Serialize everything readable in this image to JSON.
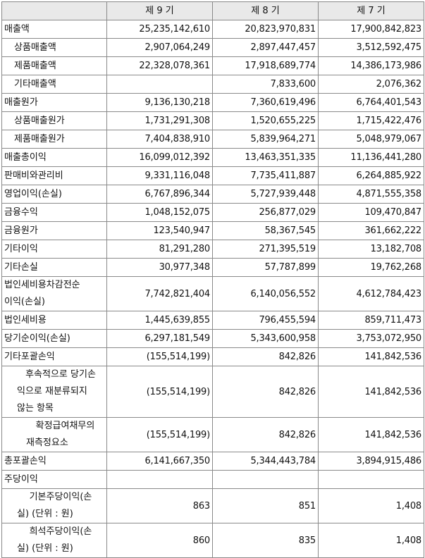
{
  "header": {
    "label_col": "",
    "col1": "제 9 기",
    "col2": "제 8 기",
    "col3": "제 7 기"
  },
  "rows": [
    {
      "label": "매출액",
      "v": [
        "25,235,142,610",
        "20,823,970,831",
        "17,900,842,823"
      ]
    },
    {
      "label": "상품매출액",
      "v": [
        "2,907,064,249",
        "2,897,447,457",
        "3,512,592,475"
      ]
    },
    {
      "label": "제품매출액",
      "v": [
        "22,328,078,361",
        "17,918,689,774",
        "14,386,173,986"
      ]
    },
    {
      "label": "기타매출액",
      "v": [
        "",
        "7,833,600",
        "2,076,362"
      ]
    },
    {
      "label": "매출원가",
      "v": [
        "9,136,130,218",
        "7,360,619,496",
        "6,764,401,543"
      ]
    },
    {
      "label": "상품매출원가",
      "v": [
        "1,731,291,308",
        "1,520,655,225",
        "1,715,422,476"
      ]
    },
    {
      "label": "제품매출원가",
      "v": [
        "7,404,838,910",
        "5,839,964,271",
        "5,048,979,067"
      ]
    },
    {
      "label": "매출총이익",
      "v": [
        "16,099,012,392",
        "13,463,351,335",
        "11,136,441,280"
      ]
    },
    {
      "label": "판매비와관리비",
      "v": [
        "9,331,116,048",
        "7,735,411,887",
        "6,264,885,922"
      ]
    },
    {
      "label": "영업이익(손실)",
      "v": [
        "6,767,896,344",
        "5,727,939,448",
        "4,871,555,358"
      ]
    },
    {
      "label": "금융수익",
      "v": [
        "1,048,152,075",
        "256,877,029",
        "109,470,847"
      ]
    },
    {
      "label": "금융원가",
      "v": [
        "123,540,947",
        "58,367,545",
        "361,662,222"
      ]
    },
    {
      "label": "기타이익",
      "v": [
        "81,291,280",
        "271,395,519",
        "13,182,708"
      ]
    },
    {
      "label": "기타손실",
      "v": [
        "30,977,348",
        "57,787,899",
        "19,762,268"
      ]
    },
    {
      "label_lines": [
        "법인세비용차감전순",
        "이익(손실)"
      ],
      "v": [
        "7,742,821,404",
        "6,140,056,552",
        "4,612,784,423"
      ]
    },
    {
      "label": "법인세비용",
      "v": [
        "1,445,639,855",
        "796,455,594",
        "859,711,473"
      ]
    },
    {
      "label": "당기순이익(손실)",
      "v": [
        "6,297,181,549",
        "5,343,600,958",
        "3,753,072,950"
      ]
    },
    {
      "label": "기타포괄손익",
      "v": [
        "(155,514,199)",
        "842,826",
        "141,842,536"
      ]
    },
    {
      "label_lines": [
        "후속적으로 당기손",
        "익으로 재분류되지",
        "않는 항목"
      ],
      "v": [
        "(155,514,199)",
        "842,826",
        "141,842,536"
      ]
    },
    {
      "label_lines": [
        "확정급여채무의",
        "재측정요소"
      ],
      "v": [
        "(155,514,199)",
        "842,826",
        "141,842,536"
      ]
    },
    {
      "label": "총포괄손익",
      "v": [
        "6,141,667,350",
        "5,344,443,784",
        "3,894,915,486"
      ]
    },
    {
      "label": "주당이익",
      "v": [
        "",
        "",
        ""
      ]
    },
    {
      "label_lines": [
        "기본주당이익(손",
        "실) (단위 : 원)"
      ],
      "v": [
        "863",
        "851",
        "1,408"
      ]
    },
    {
      "label_lines": [
        "희석주당이익(손",
        "실) (단위 : 원)"
      ],
      "v": [
        "860",
        "835",
        "1,408"
      ]
    }
  ]
}
